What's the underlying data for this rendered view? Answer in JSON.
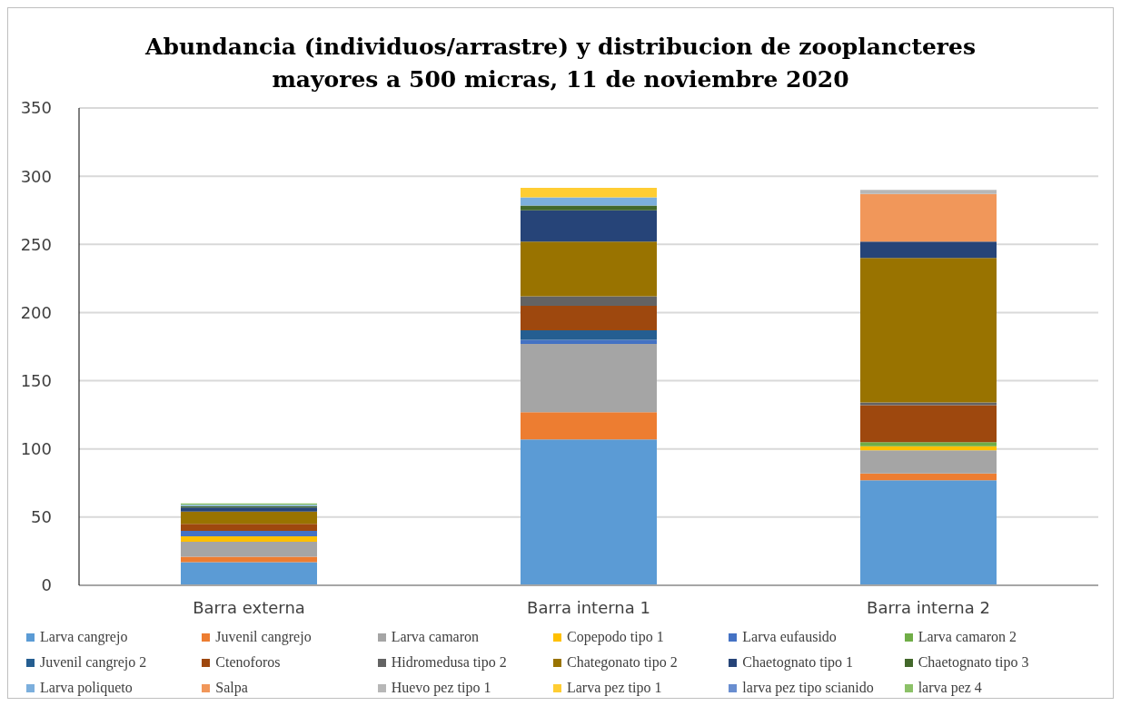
{
  "chart_data": {
    "type": "bar",
    "stacked": true,
    "title": "Abundancia (individuos/arrastre) y distribucion de zooplancteres mayores a 500 micras, 11 de noviembre 2020",
    "categories": [
      "Barra externa",
      "Barra interna 1",
      "Barra interna 2"
    ],
    "ylim": [
      0,
      350
    ],
    "yticks": [
      0,
      50,
      100,
      150,
      200,
      250,
      300,
      350
    ],
    "grid": "y",
    "legend": "bottom",
    "series": [
      {
        "name": "Larva cangrejo",
        "color": "#5b9bd5",
        "values": [
          17,
          107,
          77
        ]
      },
      {
        "name": "Juvenil cangrejo",
        "color": "#ed7d31",
        "values": [
          4,
          20,
          5
        ]
      },
      {
        "name": "Larva camaron",
        "color": "#a5a5a5",
        "values": [
          11,
          50,
          17
        ]
      },
      {
        "name": "Copepodo tipo 1",
        "color": "#ffc000",
        "values": [
          4,
          0,
          3
        ]
      },
      {
        "name": "Larva eufausido",
        "color": "#4472c4",
        "values": [
          4,
          3,
          0
        ]
      },
      {
        "name": "Larva camaron 2",
        "color": "#70ad47",
        "values": [
          0,
          0,
          3
        ]
      },
      {
        "name": "Juvenil cangrejo 2",
        "color": "#255e91",
        "values": [
          0,
          7,
          0
        ]
      },
      {
        "name": "Ctenoforos",
        "color": "#9e480e",
        "values": [
          5,
          18,
          27
        ]
      },
      {
        "name": "Hidromedusa tipo 2",
        "color": "#636363",
        "values": [
          0,
          7,
          2
        ]
      },
      {
        "name": "Chategonato tipo 2",
        "color": "#997300",
        "values": [
          9,
          40,
          106
        ]
      },
      {
        "name": "Chaetognato tipo 1",
        "color": "#264478",
        "values": [
          3,
          23,
          12
        ]
      },
      {
        "name": "Chaetognato tipo 3",
        "color": "#43682b",
        "values": [
          1,
          3.5,
          0
        ]
      },
      {
        "name": "Larva poliqueto",
        "color": "#7cafdd",
        "values": [
          1,
          6,
          0
        ]
      },
      {
        "name": "Salpa",
        "color": "#f1975a",
        "values": [
          0,
          0,
          35
        ]
      },
      {
        "name": "Huevo pez tipo 1",
        "color": "#b7b7b7",
        "values": [
          0,
          0,
          3
        ]
      },
      {
        "name": "Larva pez tipo 1",
        "color": "#ffcd33",
        "values": [
          0,
          7,
          0
        ]
      },
      {
        "name": "larva pez tipo scianido",
        "color": "#698ed0",
        "values": [
          0,
          0,
          0
        ]
      },
      {
        "name": "larva pez 4",
        "color": "#8cc168",
        "values": [
          1,
          0,
          0
        ]
      }
    ]
  }
}
